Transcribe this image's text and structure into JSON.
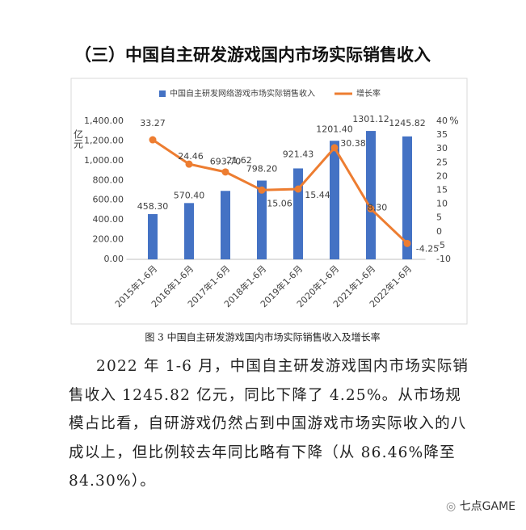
{
  "heading": "（三）中国自主研发游戏国内市场实际销售收入",
  "chart_data": {
    "type": "bar_line",
    "y_label": "亿元",
    "y2_label": "%",
    "categories": [
      "2015年1-6月",
      "2016年1-6月",
      "2017年1-6月",
      "2018年1-6月",
      "2019年1-6月",
      "2020年1-6月",
      "2021年1-6月",
      "2022年1-6月"
    ],
    "series": [
      {
        "name": "中国自主研发网络游戏市场实际销售收入",
        "type": "bar",
        "color": "#4472c4",
        "values": [
          458.3,
          570.4,
          693.7,
          798.2,
          921.43,
          1201.4,
          1301.12,
          1245.82
        ],
        "value_labels": [
          "458.30",
          "570.40",
          "693.70",
          "798.20",
          "921.43",
          "1201.40",
          "1301.12",
          "1245.82"
        ]
      },
      {
        "name": "增长率",
        "type": "line",
        "axis": "y2",
        "color": "#ed7d31",
        "values": [
          33.27,
          24.46,
          21.62,
          15.06,
          15.44,
          30.38,
          8.3,
          -4.25
        ],
        "value_labels": [
          "33.27",
          "24.46",
          "21.62",
          "15.06",
          "15.44",
          "30.38",
          "8.30",
          "-4.25"
        ]
      }
    ],
    "ylim": [
      0,
      1400
    ],
    "yticks": [
      {
        "value": 0,
        "label": "0.00"
      },
      {
        "value": 200,
        "label": "200.00"
      },
      {
        "value": 400,
        "label": "400.00"
      },
      {
        "value": 600,
        "label": "600.00"
      },
      {
        "value": 800,
        "label": "800.00"
      },
      {
        "value": 1000,
        "label": "1,000.00"
      },
      {
        "value": 1200,
        "label": "1,200.00"
      },
      {
        "value": 1400,
        "label": "1,400.00"
      }
    ],
    "y2lim": [
      -10,
      40
    ],
    "y2ticks": [
      -10,
      -5,
      0,
      5,
      10,
      15,
      20,
      25,
      30,
      35,
      40
    ],
    "grid": false,
    "legend": "top"
  },
  "caption": "图 3  中国自主研发游戏国内市场实际销售收入及增长率",
  "paragraph": "2022 年 1-6 月，中国自主研发游戏国内市场实际销售收入 1245.82 亿元，同比下降了 4.25%。从市场规模占比看，自研游戏仍然占到中国游戏市场实际收入的八成以上，但比例较去年同比略有下降（从 86.46%降至 84.30%）。",
  "watermark": "七点GAME"
}
